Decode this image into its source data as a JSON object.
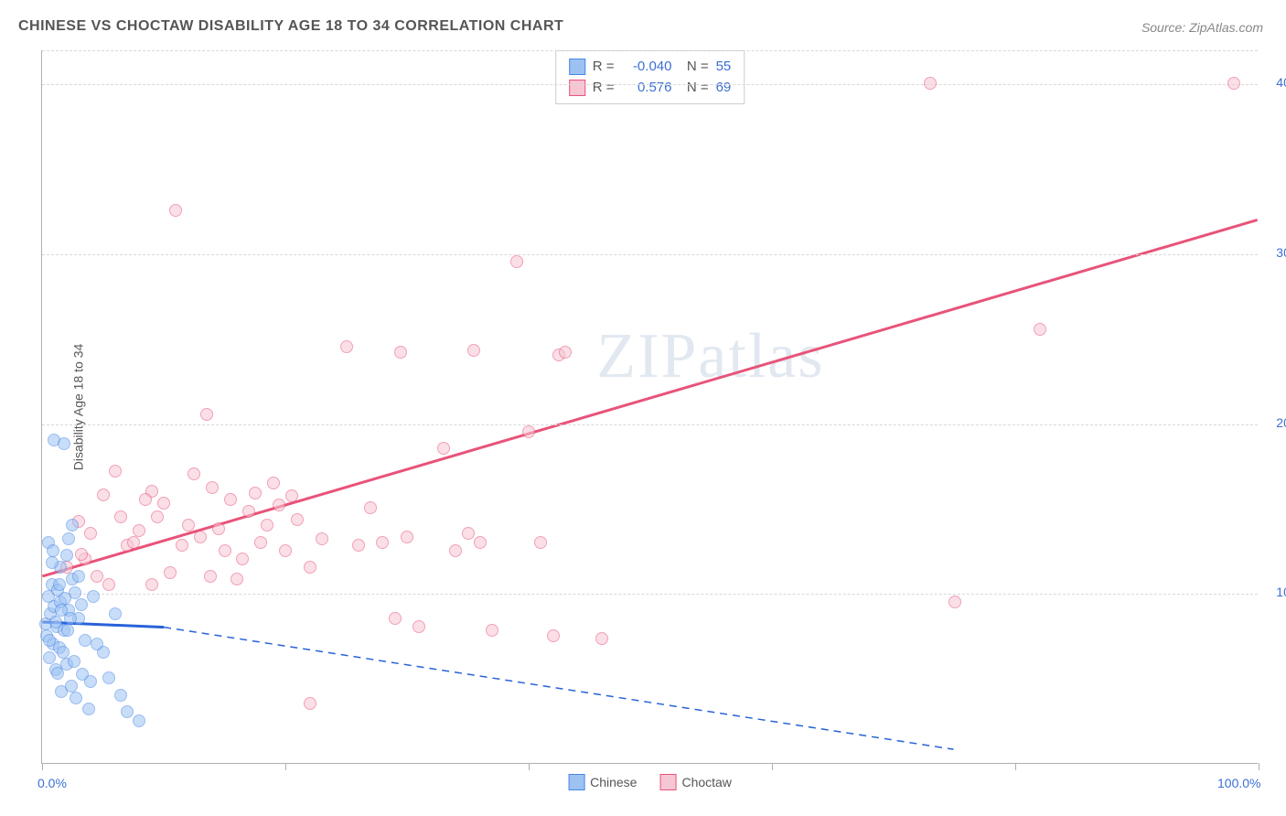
{
  "header": {
    "title": "CHINESE VS CHOCTAW DISABILITY AGE 18 TO 34 CORRELATION CHART",
    "source": "Source: ZipAtlas.com"
  },
  "chart": {
    "type": "scatter",
    "y_axis_title": "Disability Age 18 to 34",
    "watermark": "ZIPatlas",
    "xlim": [
      0,
      100
    ],
    "ylim": [
      0,
      42
    ],
    "x_ticks": [
      0,
      20,
      40,
      60,
      80,
      100
    ],
    "x_tick_labels": {
      "0": "0.0%",
      "100": "100.0%"
    },
    "y_grid": [
      10,
      20,
      30,
      40,
      42
    ],
    "y_tick_labels": {
      "10": "10.0%",
      "20": "20.0%",
      "30": "30.0%",
      "40": "40.0%"
    },
    "background_color": "#ffffff",
    "grid_color": "#d8d8d8",
    "axis_color": "#b0b0b0",
    "marker_size": 14,
    "marker_opacity": 0.55,
    "series": {
      "chinese": {
        "label": "Chinese",
        "color_fill": "#9cc2f2",
        "color_stroke": "#4a86e8",
        "R": "-0.040",
        "N": "55",
        "trend_line": {
          "x1": 0,
          "y1": 8.3,
          "x2": 10,
          "y2": 8.0,
          "extend_x2": 75,
          "extend_y2": 0.8,
          "color": "#2962d9",
          "width": 3,
          "dash_extend": true
        },
        "points": [
          [
            0.3,
            8.2
          ],
          [
            0.4,
            7.5
          ],
          [
            0.5,
            9.8
          ],
          [
            0.6,
            6.2
          ],
          [
            0.7,
            8.8
          ],
          [
            0.8,
            10.5
          ],
          [
            0.9,
            7.0
          ],
          [
            1.0,
            9.2
          ],
          [
            1.1,
            5.5
          ],
          [
            1.2,
            8.0
          ],
          [
            1.3,
            10.2
          ],
          [
            1.4,
            6.8
          ],
          [
            1.5,
            9.5
          ],
          [
            1.6,
            4.2
          ],
          [
            1.8,
            7.8
          ],
          [
            2.0,
            5.8
          ],
          [
            2.2,
            9.0
          ],
          [
            2.4,
            4.5
          ],
          [
            2.5,
            10.8
          ],
          [
            2.6,
            6.0
          ],
          [
            2.8,
            3.8
          ],
          [
            3.0,
            8.5
          ],
          [
            3.3,
            5.2
          ],
          [
            3.5,
            7.2
          ],
          [
            3.8,
            3.2
          ],
          [
            4.0,
            4.8
          ],
          [
            4.2,
            9.8
          ],
          [
            1.0,
            19.0
          ],
          [
            1.8,
            18.8
          ],
          [
            5.0,
            6.5
          ],
          [
            5.5,
            5.0
          ],
          [
            6.0,
            8.8
          ],
          [
            6.5,
            4.0
          ],
          [
            7.0,
            3.0
          ],
          [
            8.0,
            2.5
          ],
          [
            1.5,
            11.5
          ],
          [
            2.0,
            12.2
          ],
          [
            0.5,
            13.0
          ],
          [
            2.3,
            8.5
          ],
          [
            3.2,
            9.3
          ],
          [
            1.7,
            6.5
          ],
          [
            2.1,
            7.8
          ],
          [
            1.3,
            5.3
          ],
          [
            4.5,
            7.0
          ],
          [
            0.8,
            11.8
          ],
          [
            1.6,
            9.0
          ],
          [
            2.7,
            10.0
          ],
          [
            0.6,
            7.2
          ],
          [
            1.1,
            8.3
          ],
          [
            1.9,
            9.7
          ],
          [
            1.4,
            10.5
          ],
          [
            0.9,
            12.5
          ],
          [
            2.5,
            14.0
          ],
          [
            3.0,
            11.0
          ],
          [
            2.2,
            13.2
          ]
        ]
      },
      "choctaw": {
        "label": "Choctaw",
        "color_fill": "#f7c6d4",
        "color_stroke": "#e8537a",
        "R": "0.576",
        "N": "69",
        "trend_line": {
          "x1": 0,
          "y1": 11.0,
          "x2": 100,
          "y2": 32.0,
          "color": "#e8537a",
          "width": 3,
          "dash_extend": false
        },
        "points": [
          [
            2.0,
            11.5
          ],
          [
            3.0,
            14.2
          ],
          [
            3.5,
            12.0
          ],
          [
            4.0,
            13.5
          ],
          [
            5.0,
            15.8
          ],
          [
            5.5,
            10.5
          ],
          [
            6.0,
            17.2
          ],
          [
            7.0,
            12.8
          ],
          [
            8.0,
            13.7
          ],
          [
            9.0,
            16.0
          ],
          [
            9.5,
            14.5
          ],
          [
            10.0,
            15.3
          ],
          [
            10.5,
            11.2
          ],
          [
            11.0,
            32.5
          ],
          [
            12.0,
            14.0
          ],
          [
            13.0,
            13.3
          ],
          [
            13.5,
            20.5
          ],
          [
            14.0,
            16.2
          ],
          [
            15.0,
            12.5
          ],
          [
            15.5,
            15.5
          ],
          [
            16.0,
            10.8
          ],
          [
            17.0,
            14.8
          ],
          [
            17.5,
            15.9
          ],
          [
            18.0,
            13.0
          ],
          [
            19.0,
            16.5
          ],
          [
            19.5,
            15.2
          ],
          [
            20.0,
            12.5
          ],
          [
            21.0,
            14.3
          ],
          [
            22.0,
            11.5
          ],
          [
            23.0,
            13.2
          ],
          [
            25.0,
            24.5
          ],
          [
            26.0,
            12.8
          ],
          [
            27.0,
            15.0
          ],
          [
            28.0,
            13.0
          ],
          [
            29.0,
            8.5
          ],
          [
            29.5,
            24.2
          ],
          [
            30.0,
            13.3
          ],
          [
            31.0,
            8.0
          ],
          [
            33.0,
            18.5
          ],
          [
            34.0,
            12.5
          ],
          [
            35.0,
            13.5
          ],
          [
            35.5,
            24.3
          ],
          [
            36.0,
            13.0
          ],
          [
            37.0,
            7.8
          ],
          [
            39.0,
            29.5
          ],
          [
            40.0,
            19.5
          ],
          [
            41.0,
            13.0
          ],
          [
            42.0,
            7.5
          ],
          [
            42.5,
            24.0
          ],
          [
            43.0,
            24.2
          ],
          [
            46.0,
            7.3
          ],
          [
            9.0,
            10.5
          ],
          [
            11.5,
            12.8
          ],
          [
            13.8,
            11.0
          ],
          [
            16.5,
            12.0
          ],
          [
            6.5,
            14.5
          ],
          [
            8.5,
            15.5
          ],
          [
            12.5,
            17.0
          ],
          [
            22.0,
            3.5
          ],
          [
            14.5,
            13.8
          ],
          [
            18.5,
            14.0
          ],
          [
            20.5,
            15.7
          ],
          [
            4.5,
            11.0
          ],
          [
            7.5,
            13.0
          ],
          [
            73.0,
            40.0
          ],
          [
            75.0,
            9.5
          ],
          [
            82.0,
            25.5
          ],
          [
            98.0,
            40.0
          ],
          [
            3.2,
            12.3
          ]
        ]
      }
    },
    "bottom_legend": [
      "Chinese",
      "Choctaw"
    ]
  }
}
